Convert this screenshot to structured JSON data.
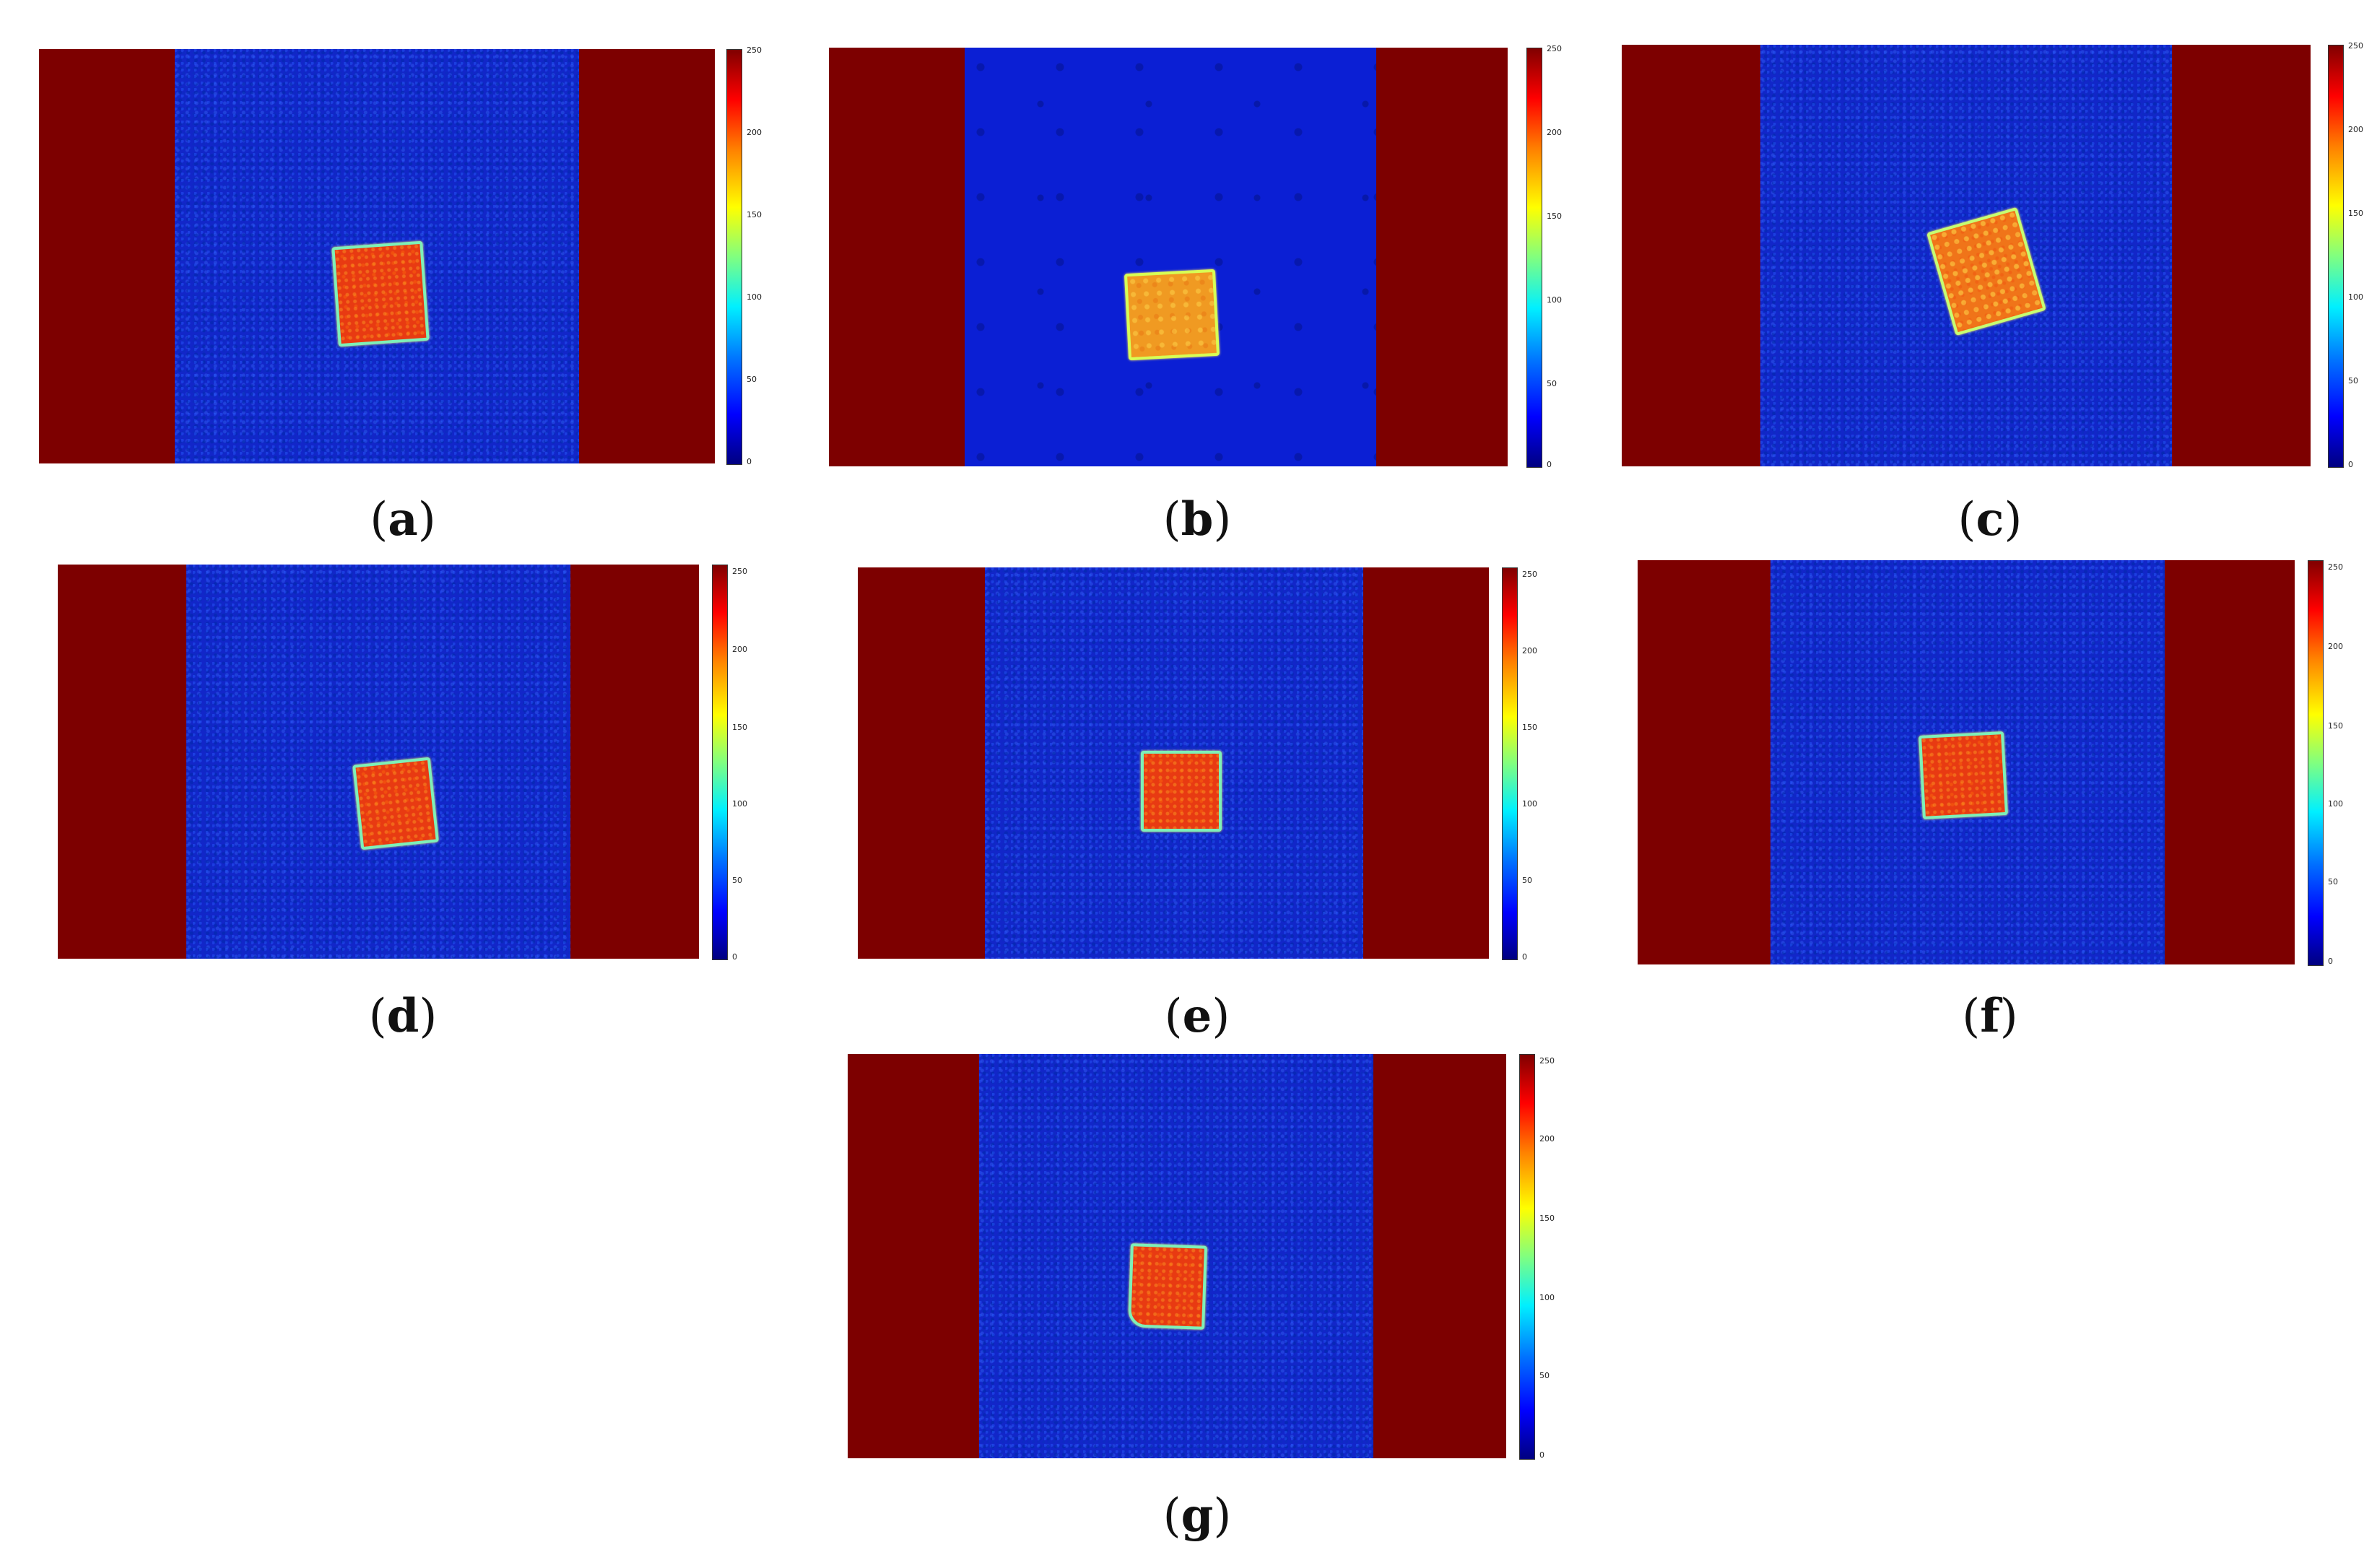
{
  "figure": {
    "colors": {
      "background_dark_red": "#7d0000",
      "field_blue": "#1226c9",
      "patch_red": "#e83a12",
      "patch_orange": "#f09a22"
    },
    "colorbar_ticks": [
      "0",
      "50",
      "100",
      "150",
      "200",
      "250"
    ],
    "panels": [
      {
        "id": "a",
        "label": "a",
        "patch_style": "red",
        "field_style": "noisy",
        "patch_rotation_deg": -4
      },
      {
        "id": "b",
        "label": "b",
        "patch_style": "orange",
        "field_style": "smooth",
        "patch_rotation_deg": -3
      },
      {
        "id": "c",
        "label": "c",
        "patch_style": "yellowish",
        "field_style": "noisy",
        "patch_rotation_deg": -16
      },
      {
        "id": "d",
        "label": "d",
        "patch_style": "red",
        "field_style": "noisy",
        "patch_rotation_deg": -6
      },
      {
        "id": "e",
        "label": "e",
        "patch_style": "red",
        "field_style": "noisy",
        "patch_rotation_deg": 0
      },
      {
        "id": "f",
        "label": "f",
        "patch_style": "red",
        "field_style": "noisy",
        "patch_rotation_deg": -3
      },
      {
        "id": "g",
        "label": "g",
        "patch_style": "red",
        "field_style": "noisy",
        "patch_rotation_deg": 2
      }
    ]
  }
}
